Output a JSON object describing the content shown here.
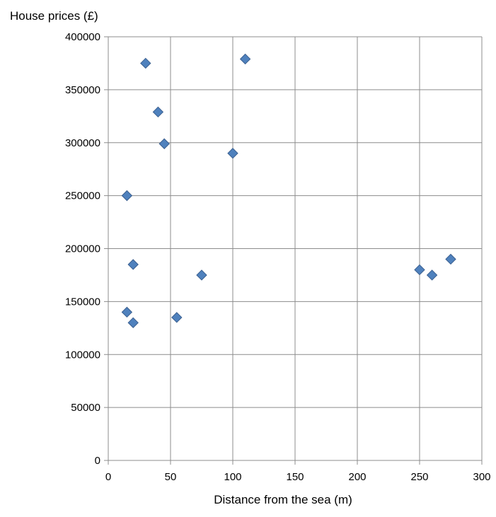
{
  "chart_data": {
    "type": "scatter",
    "title": "",
    "ylabel": "House prices (£)",
    "xlabel": "Distance from the sea (m)",
    "xlim": [
      0,
      300
    ],
    "ylim": [
      0,
      400000
    ],
    "x_ticks": [
      0,
      50,
      100,
      150,
      200,
      250,
      300
    ],
    "y_ticks": [
      0,
      50000,
      100000,
      150000,
      200000,
      250000,
      300000,
      350000,
      400000
    ],
    "grid": true,
    "legend": "none",
    "marker": "diamond",
    "marker_color": "#4f81bd",
    "marker_border": "#3a5f8f",
    "gridline_color": "#8c8c8c",
    "series": [
      {
        "points": [
          {
            "x": 15,
            "y": 140000
          },
          {
            "x": 15,
            "y": 250000
          },
          {
            "x": 20,
            "y": 130000
          },
          {
            "x": 20,
            "y": 185000
          },
          {
            "x": 30,
            "y": 375000
          },
          {
            "x": 40,
            "y": 329000
          },
          {
            "x": 45,
            "y": 299000
          },
          {
            "x": 55,
            "y": 135000
          },
          {
            "x": 75,
            "y": 175000
          },
          {
            "x": 100,
            "y": 290000
          },
          {
            "x": 110,
            "y": 379000
          },
          {
            "x": 250,
            "y": 180000
          },
          {
            "x": 260,
            "y": 175000
          },
          {
            "x": 275,
            "y": 190000
          }
        ]
      }
    ]
  }
}
